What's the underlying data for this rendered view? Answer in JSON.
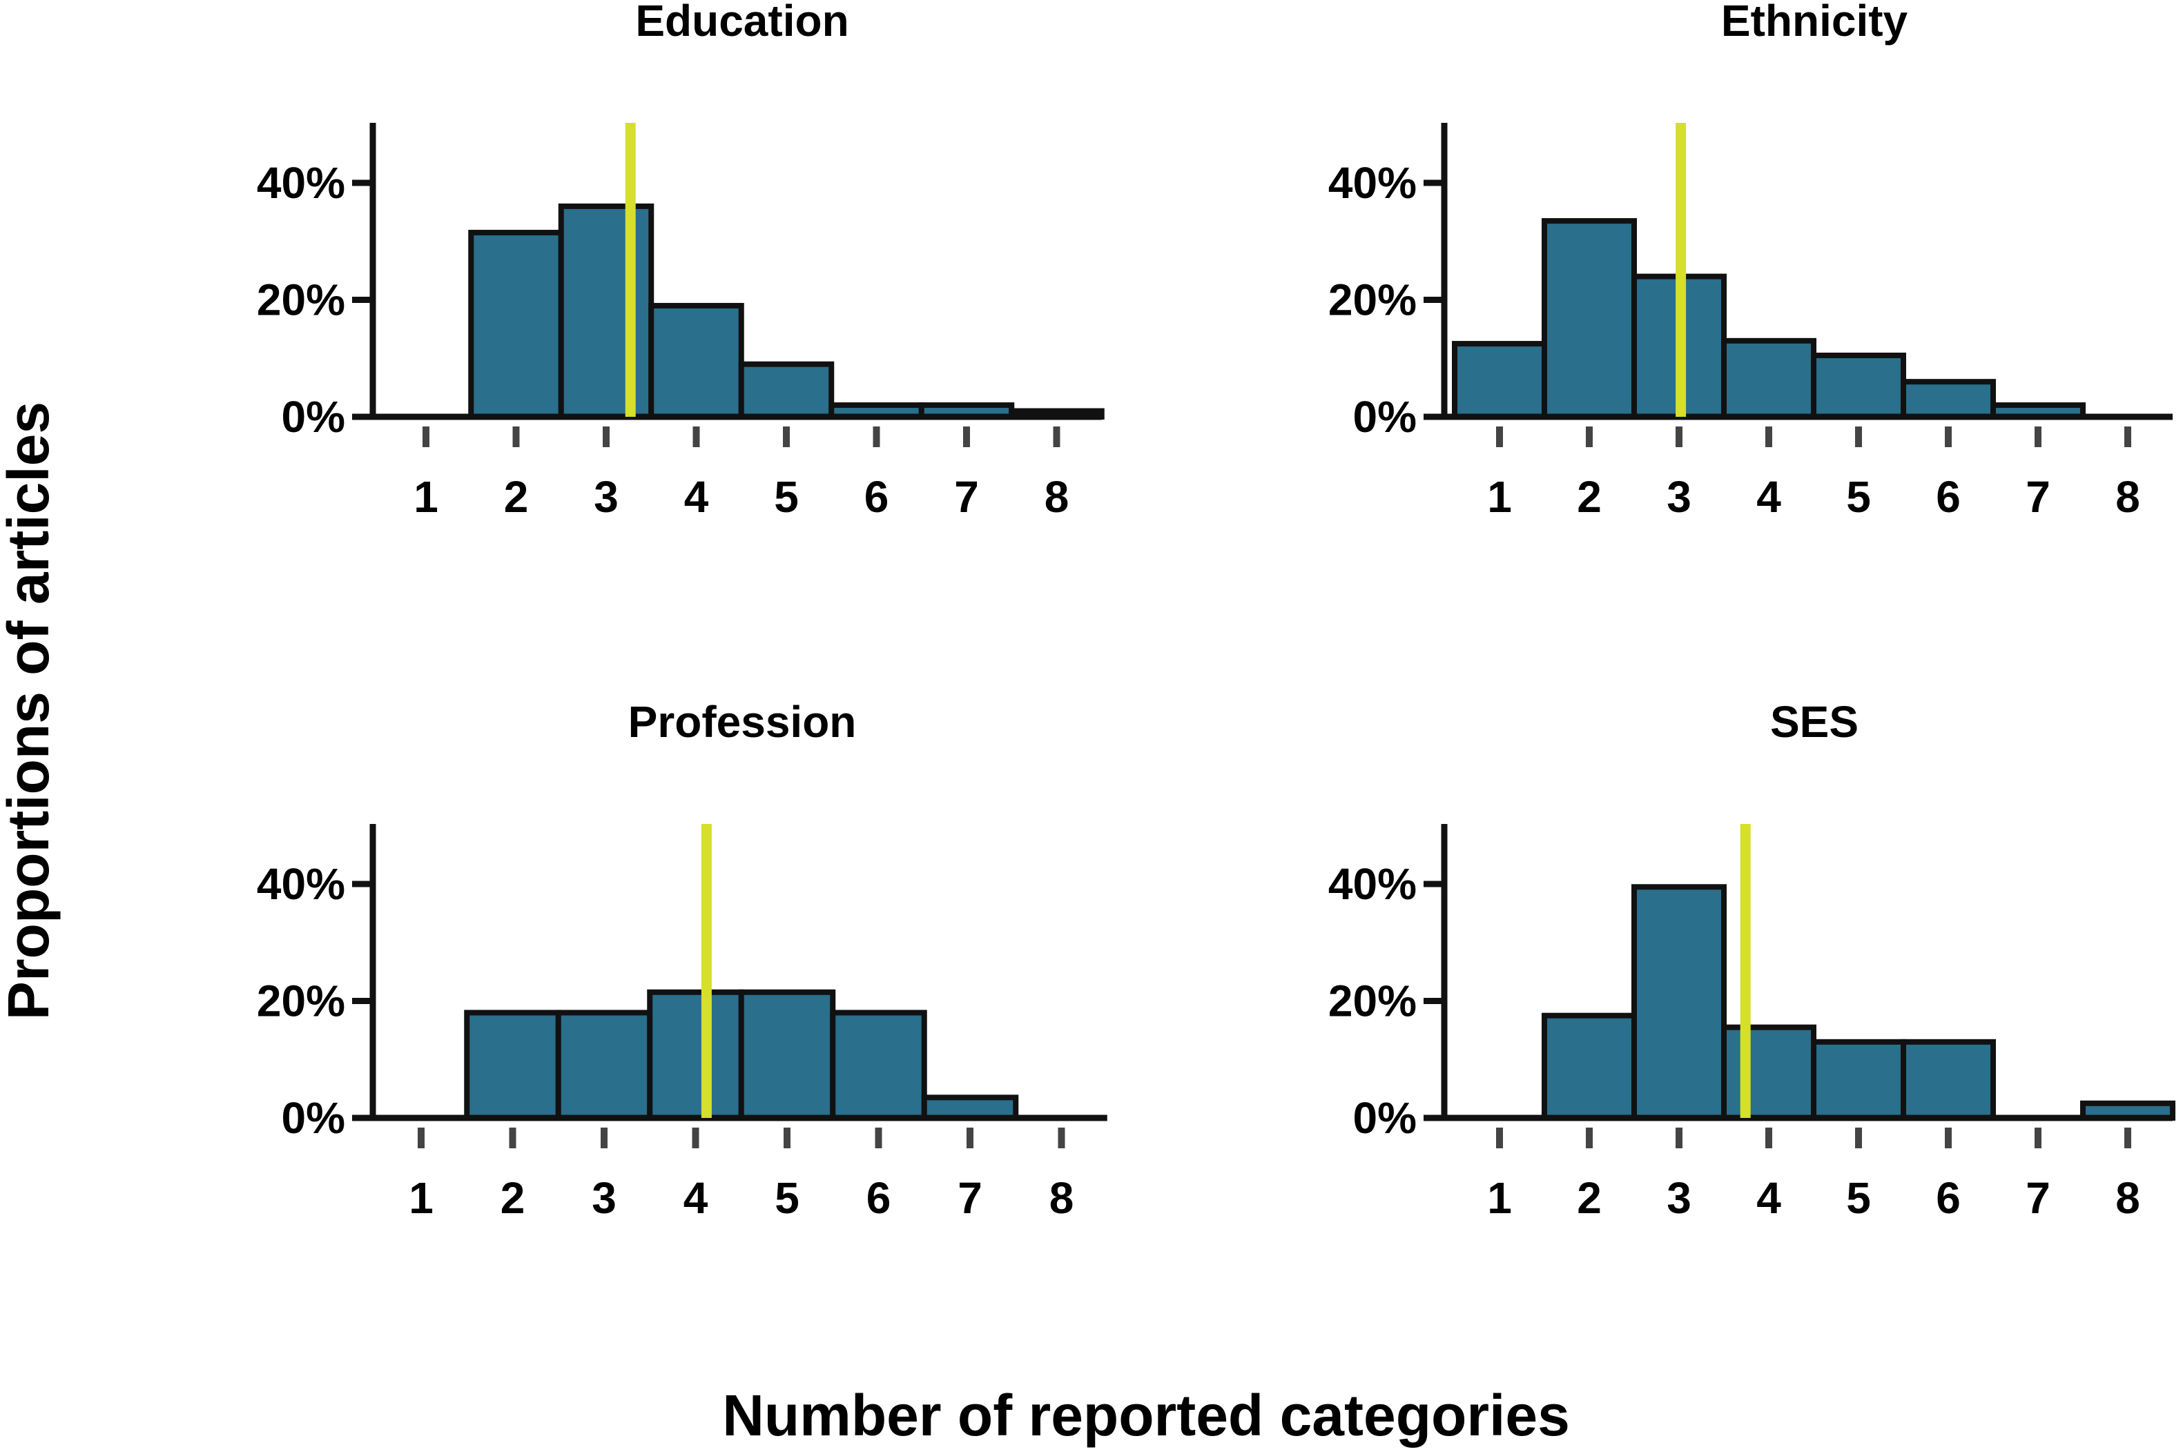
{
  "figure": {
    "xlabel": "Number of reported categories",
    "ylabel": "Proportions of articles"
  },
  "colors": {
    "bar": "#2a6f8c",
    "bar_edge": "#111111",
    "axis": "#111111",
    "tick_mark": "#444444",
    "mean_line": "#d6df2a"
  },
  "chart_data": [
    {
      "type": "bar",
      "title": "Education",
      "categories": [
        "1",
        "2",
        "3",
        "4",
        "5",
        "6",
        "7",
        "8"
      ],
      "values": [
        0,
        31.5,
        36,
        19,
        9,
        2,
        2,
        1
      ],
      "mean": 3.27,
      "ylim": [
        0,
        50
      ],
      "yticks": [
        0,
        20,
        40
      ],
      "ytick_labels": [
        "0%",
        "20%",
        "40%"
      ]
    },
    {
      "type": "bar",
      "title": "Ethnicity",
      "categories": [
        "1",
        "2",
        "3",
        "4",
        "5",
        "6",
        "7",
        "8"
      ],
      "values": [
        12.5,
        33.5,
        24,
        13,
        10.5,
        6,
        2,
        0
      ],
      "mean": 3.02,
      "ylim": [
        0,
        50
      ],
      "yticks": [
        0,
        20,
        40
      ],
      "ytick_labels": [
        "0%",
        "20%",
        "40%"
      ]
    },
    {
      "type": "bar",
      "title": "Profession",
      "categories": [
        "1",
        "2",
        "3",
        "4",
        "5",
        "6",
        "7",
        "8"
      ],
      "values": [
        0,
        18,
        18,
        21.5,
        21.5,
        18,
        3.5,
        0
      ],
      "mean": 4.12,
      "ylim": [
        0,
        50
      ],
      "yticks": [
        0,
        20,
        40
      ],
      "ytick_labels": [
        "0%",
        "20%",
        "40%"
      ]
    },
    {
      "type": "bar",
      "title": "SES",
      "categories": [
        "1",
        "2",
        "3",
        "4",
        "5",
        "6",
        "7",
        "8"
      ],
      "values": [
        0,
        17.5,
        39.5,
        15.5,
        13,
        13,
        0,
        2.5
      ],
      "mean": 3.74,
      "ylim": [
        0,
        50
      ],
      "yticks": [
        0,
        20,
        40
      ],
      "ytick_labels": [
        "0%",
        "20%",
        "40%"
      ]
    }
  ]
}
